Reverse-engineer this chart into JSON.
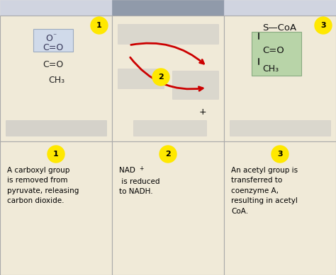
{
  "bg_cream": "#f0ead8",
  "bg_header_light": "#d0d4e0",
  "bg_header_dark": "#909aaa",
  "bg_gray_blur": "#c0c0c0",
  "bg_green": "#b8d4a8",
  "yellow_circle": "#ffe800",
  "red_arrow": "#cc0000",
  "border_color": "#aaaaaa",
  "blue_box_fill": "#d0daea",
  "blue_box_edge": "#9aaac0",
  "cell_text_1": "A carboxyl group\nis removed from\npyruvate, releasing\ncarbon dioxide.",
  "cell_text_2_a": "NAD",
  "cell_text_2_b": "+",
  "cell_text_2_c": " is reduced\nto NADH.",
  "cell_text_3": "An acetyl group is\ntransferred to\ncoenzyme A,\nresulting in acetyl\nCoA."
}
